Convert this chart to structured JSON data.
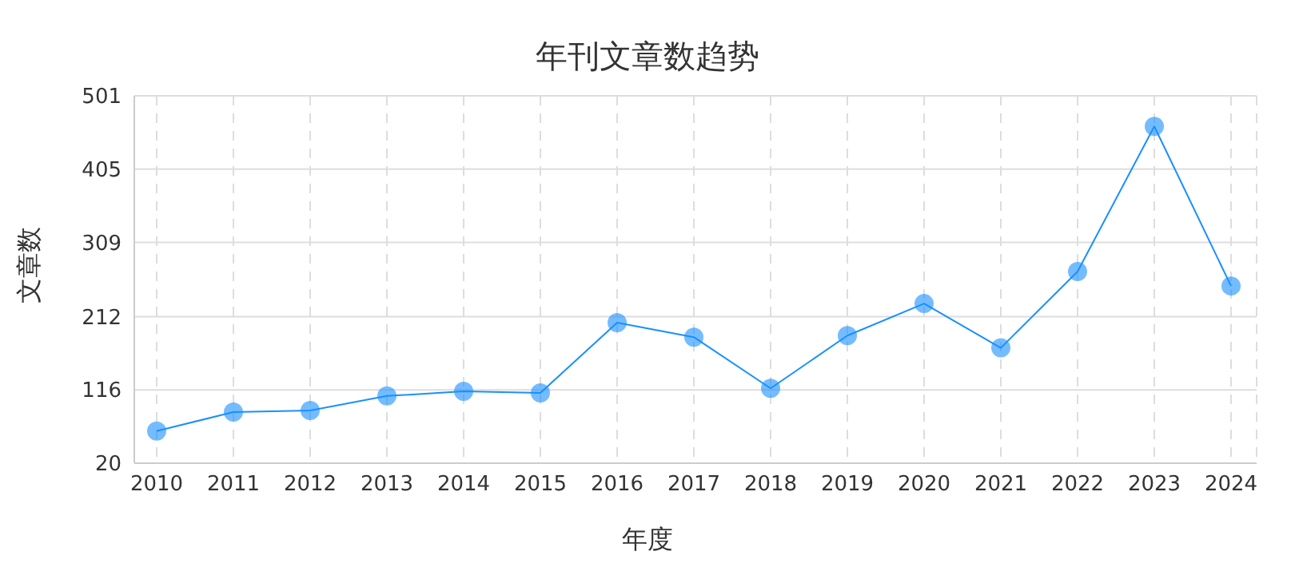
{
  "chart_data": {
    "type": "line",
    "title": "年刊文章数趋势",
    "xlabel": "年度",
    "ylabel": "文章数",
    "categories": [
      "2010",
      "2011",
      "2012",
      "2013",
      "2014",
      "2015",
      "2016",
      "2017",
      "2018",
      "2019",
      "2020",
      "2021",
      "2022",
      "2023",
      "2024"
    ],
    "series": [
      {
        "color": "#1890ff",
        "values": [
          62,
          87,
          89,
          108,
          114,
          112,
          204,
          185,
          118,
          187,
          229,
          171,
          271,
          461,
          252
        ]
      }
    ],
    "ylim": [
      20,
      501
    ],
    "yticks": [
      20,
      116,
      212,
      309,
      405,
      501
    ],
    "grid": true,
    "marker": "circle",
    "line_style": "solid"
  }
}
